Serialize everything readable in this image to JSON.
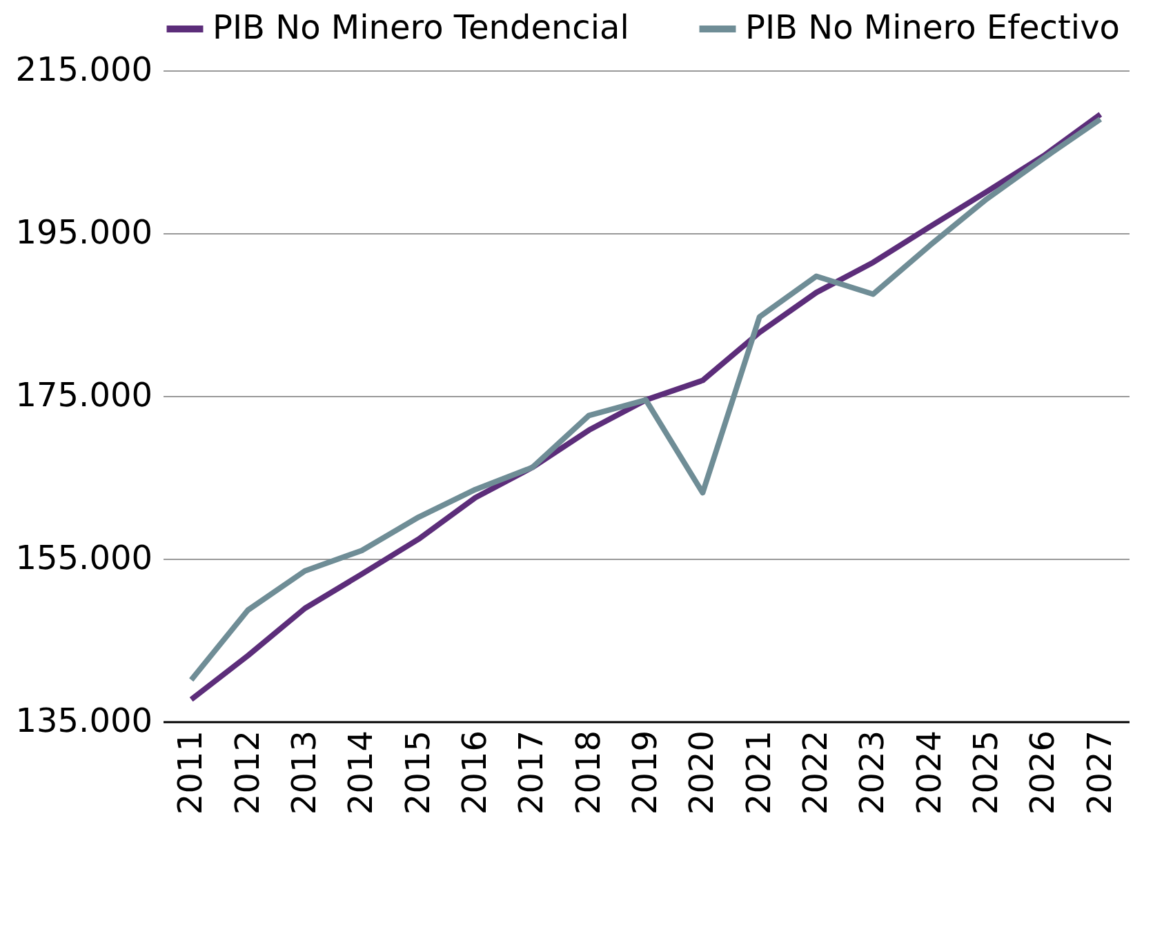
{
  "chart_data": {
    "type": "line",
    "categories": [
      "2011",
      "2012",
      "2013",
      "2014",
      "2015",
      "2016",
      "2017",
      "2018",
      "2019",
      "2020",
      "2021",
      "2022",
      "2023",
      "2024",
      "2025",
      "2026",
      "2027"
    ],
    "series": [
      {
        "name": "PIB No Minero Tendencial",
        "color": "#5c2d7a",
        "values": [
          137700,
          143100,
          148900,
          153100,
          157400,
          162500,
          166200,
          170800,
          174500,
          176900,
          182800,
          187700,
          191400,
          195800,
          200100,
          204500,
          209600
        ]
      },
      {
        "name": "PIB No Minero Efectivo",
        "color": "#6f8d96",
        "values": [
          140100,
          148700,
          153500,
          156000,
          160100,
          163500,
          166200,
          172600,
          174500,
          163100,
          184700,
          189700,
          187500,
          193500,
          199200,
          204200,
          209000
        ]
      }
    ],
    "ylim": [
      135000,
      215000
    ],
    "yticks": [
      {
        "value": 135000,
        "label": "135.000"
      },
      {
        "value": 155000,
        "label": "155.000"
      },
      {
        "value": 175000,
        "label": "175.000"
      },
      {
        "value": 195000,
        "label": "195.000"
      },
      {
        "value": 215000,
        "label": "215.000"
      }
    ],
    "grid": "y",
    "legend": "top",
    "line_style": "solid",
    "marker": "none"
  }
}
